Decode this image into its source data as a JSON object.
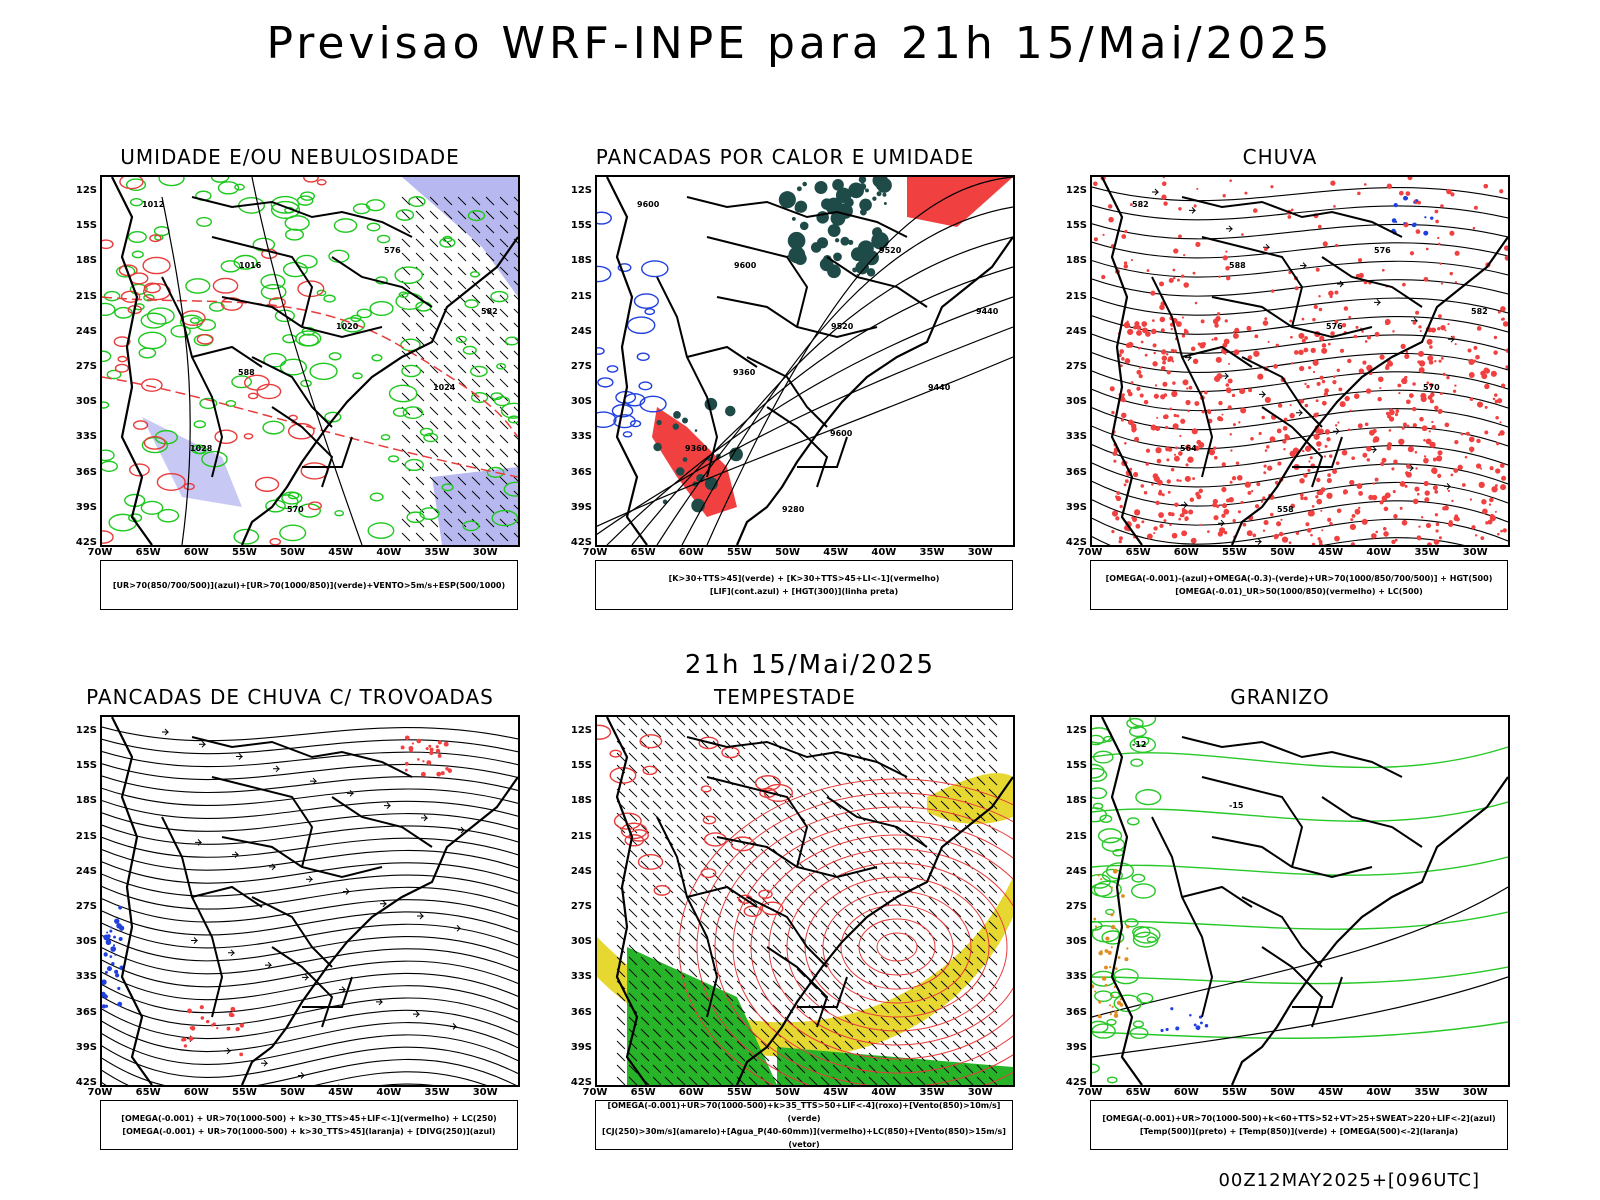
{
  "main_title": "Previsao WRF-INPE  para 21h 15/Mai/2025",
  "mid_title": "21h 15/Mai/2025",
  "footer": "00Z12MAY2025+[096UTC]",
  "lat_labels": [
    "12S",
    "15S",
    "18S",
    "21S",
    "24S",
    "27S",
    "30S",
    "33S",
    "36S",
    "39S",
    "42S"
  ],
  "lon_labels": [
    "70W",
    "65W",
    "60W",
    "55W",
    "50W",
    "45W",
    "40W",
    "35W",
    "30W"
  ],
  "panels": [
    {
      "title": "UMIDADE E/OU NEBULOSIDADE",
      "legend": [
        "[UR>70(850/700/500)](azul)+[UR>70(1000/850)](verde)+VENTO>5m/s+ESP(500/1000)"
      ],
      "contour_labels": [
        "1012",
        "1016",
        "1020",
        "1024",
        "1028",
        "570",
        "576",
        "582",
        "588"
      ]
    },
    {
      "title": "PANCADAS POR CALOR E UMIDADE",
      "legend": [
        "[K>30+TTS>45](verde) + [K>30+TTS>45+LI<-1](vermelho)",
        "[LIF](cont.azul) + [HGT(300)](linha preta)"
      ],
      "contour_labels": [
        "9600",
        "9600",
        "9520",
        "9440",
        "9360",
        "9280",
        "9520",
        "9440",
        "9360",
        "9600"
      ]
    },
    {
      "title": "CHUVA",
      "legend": [
        "[OMEGA(-0.001)-(azul)+OMEGA(-0.3)-(verde)+UR>70(1000/850/700/500)] + HGT(500)",
        "[OMEGA(-0.01)_UR>50(1000/850)(vermelho) + LC(500)"
      ],
      "contour_labels": [
        "582",
        "588",
        "576",
        "570",
        "564",
        "558",
        "576",
        "582"
      ]
    },
    {
      "title": "PANCADAS DE CHUVA C/ TROVOADAS",
      "legend": [
        "[OMEGA(-0.001) + UR>70(1000-500) + k>30_TTS>45+LIF<-1](vermelho) + LC(250)",
        "[OMEGA(-0.001) + UR>70(1000-500) + k>30_TTS>45](laranja) + [DIVG(250)](azul)"
      ],
      "contour_labels": []
    },
    {
      "title": "TEMPESTADE",
      "legend": [
        "[OMEGA(-0.001)+UR>70(1000-500)+k>35_TTS>50+LIF<-4](roxo)+[Vento(850)>10m/s](verde)",
        "[CJ(250)>30m/s](amarelo)+[Agua_P(40-60mm)](vermelho)+LC(850)+[Vento(850)>15m/s](vetor)"
      ],
      "contour_labels": []
    },
    {
      "title": "GRANIZO",
      "legend": [
        "[OMEGA(-0.001)+UR>70(1000-500)+k<60+TTS>52+VT>25+SWEAT>220+LIF<-2](azul)",
        "[Temp(500)](preto) + [Temp(850)](verde) + [OMEGA(500)<-2](laranja)"
      ],
      "contour_labels": [
        "-12",
        "-15"
      ]
    }
  ]
}
